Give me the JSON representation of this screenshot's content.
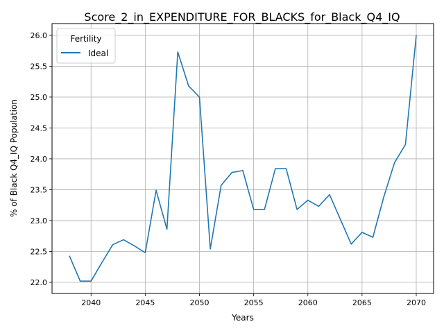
{
  "chart_data": {
    "type": "line",
    "title": "Score_2_in_EXPENDITURE_FOR_BLACKS_for_Black_Q4_IQ",
    "xlabel": "Years",
    "ylabel": "% of Black Q4_IQ Population",
    "xlim": [
      2036.4,
      2071.6
    ],
    "ylim": [
      21.82,
      26.19
    ],
    "xticks": [
      2040,
      2045,
      2050,
      2055,
      2060,
      2065,
      2070
    ],
    "yticks": [
      22.0,
      22.5,
      23.0,
      23.5,
      24.0,
      24.5,
      25.0,
      25.5,
      26.0
    ],
    "x_tick_labels": [
      "2040",
      "2045",
      "2050",
      "2055",
      "2060",
      "2065",
      "2070"
    ],
    "y_tick_labels": [
      "22.0",
      "22.5",
      "23.0",
      "23.5",
      "24.0",
      "24.5",
      "25.0",
      "25.5",
      "26.0"
    ],
    "grid": true,
    "legend": {
      "title": "Fertility",
      "placement": "top-left"
    },
    "series": [
      {
        "name": "Ideal",
        "color": "#1f77b4",
        "x": [
          2038,
          2039,
          2040,
          2041,
          2042,
          2043,
          2044,
          2045,
          2046,
          2047,
          2048,
          2049,
          2050,
          2051,
          2052,
          2053,
          2054,
          2055,
          2056,
          2057,
          2058,
          2059,
          2060,
          2061,
          2062,
          2063,
          2064,
          2065,
          2066,
          2067,
          2068,
          2069,
          2070
        ],
        "y": [
          22.43,
          22.02,
          22.02,
          22.32,
          22.61,
          22.69,
          22.59,
          22.48,
          23.49,
          22.86,
          25.73,
          25.18,
          25.0,
          22.54,
          23.57,
          23.78,
          23.81,
          23.18,
          23.18,
          23.84,
          23.84,
          23.18,
          23.33,
          23.23,
          23.42,
          23.02,
          22.62,
          22.81,
          22.73,
          23.38,
          23.94,
          24.23,
          26.0
        ]
      }
    ]
  }
}
